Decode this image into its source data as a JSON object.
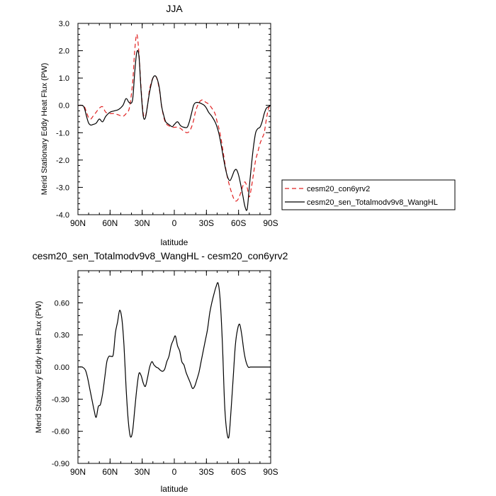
{
  "chart_data": [
    {
      "type": "line",
      "title": "JJA",
      "xlabel": "latitude",
      "ylabel": "Merid Stationary Eddy Heat Flux (PW)",
      "xlim": [
        90,
        -90
      ],
      "ylim": [
        -4.0,
        3.0
      ],
      "x_ticks": [
        {
          "value": 90,
          "label": "90N"
        },
        {
          "value": 60,
          "label": "60N"
        },
        {
          "value": 30,
          "label": "30N"
        },
        {
          "value": 0,
          "label": "0"
        },
        {
          "value": -30,
          "label": "30S"
        },
        {
          "value": -60,
          "label": "60S"
        },
        {
          "value": -90,
          "label": "90S"
        }
      ],
      "y_ticks": [
        {
          "value": 3.0,
          "label": "3.0"
        },
        {
          "value": 2.0,
          "label": "2.0"
        },
        {
          "value": 1.0,
          "label": "1.0"
        },
        {
          "value": 0.0,
          "label": "0.0"
        },
        {
          "value": -1.0,
          "label": "-1.0"
        },
        {
          "value": -2.0,
          "label": "-2.0"
        },
        {
          "value": -3.0,
          "label": "-3.0"
        },
        {
          "value": -4.0,
          "label": "-4.0"
        }
      ],
      "legend_position": "right",
      "series": [
        {
          "name": "cesm20_con6yrv2",
          "color": "#e02020",
          "dash": "dashed",
          "x": [
            90,
            86,
            84,
            82,
            80,
            78,
            76,
            73,
            70,
            67,
            64,
            60,
            56,
            52,
            48,
            45,
            42,
            39,
            37,
            35,
            33,
            31,
            29,
            27,
            25,
            23,
            20,
            17,
            14,
            12,
            10,
            8,
            5,
            2,
            0,
            -3,
            -6,
            -9,
            -12,
            -14,
            -16,
            -18,
            -20,
            -23,
            -26,
            -28,
            -30,
            -32,
            -35,
            -38,
            -40,
            -42,
            -44,
            -46,
            -48,
            -50,
            -52,
            -54,
            -56,
            -58,
            -60,
            -62,
            -64,
            -66,
            -68,
            -70,
            -72,
            -74,
            -76,
            -78,
            -80,
            -82,
            -84,
            -86,
            -88,
            -90
          ],
          "y": [
            0,
            0,
            -0.05,
            -0.25,
            -0.45,
            -0.5,
            -0.4,
            -0.25,
            -0.1,
            -0.05,
            -0.25,
            -0.3,
            -0.3,
            -0.35,
            -0.4,
            -0.3,
            -0.1,
            0.8,
            2.0,
            2.6,
            1.9,
            0.6,
            -0.3,
            -0.4,
            0,
            0.6,
            1.0,
            1.05,
            0.6,
            0,
            -0.4,
            -0.65,
            -0.75,
            -0.8,
            -0.8,
            -0.8,
            -0.85,
            -0.95,
            -1.0,
            -0.95,
            -0.8,
            -0.55,
            -0.2,
            0.1,
            0.2,
            0.15,
            0.1,
            0.05,
            -0.1,
            -0.3,
            -0.6,
            -0.9,
            -1.3,
            -1.8,
            -2.3,
            -2.7,
            -3.0,
            -3.25,
            -3.45,
            -3.5,
            -3.4,
            -3.2,
            -2.95,
            -2.8,
            -3.0,
            -3.35,
            -3.0,
            -2.5,
            -2.0,
            -1.7,
            -1.4,
            -1.2,
            -1.0,
            -0.5,
            -0.1,
            0
          ]
        },
        {
          "name": "cesm20_sen_Totalmodv9v8_WangHL",
          "color": "#000000",
          "dash": "solid",
          "x": [
            90,
            86,
            84,
            82,
            80,
            78,
            76,
            73,
            70,
            67,
            64,
            60,
            56,
            52,
            48,
            45,
            42,
            39,
            37,
            35,
            33,
            31,
            29,
            27,
            25,
            23,
            20,
            17,
            14,
            12,
            10,
            8,
            5,
            2,
            0,
            -3,
            -6,
            -9,
            -12,
            -14,
            -16,
            -18,
            -20,
            -23,
            -26,
            -28,
            -30,
            -32,
            -35,
            -38,
            -40,
            -42,
            -44,
            -46,
            -48,
            -50,
            -52,
            -54,
            -56,
            -58,
            -60,
            -62,
            -64,
            -66,
            -68,
            -70,
            -72,
            -74,
            -76,
            -78,
            -80,
            -82,
            -84,
            -86,
            -88,
            -90
          ],
          "y": [
            0,
            0,
            -0.1,
            -0.4,
            -0.65,
            -0.72,
            -0.7,
            -0.65,
            -0.5,
            -0.6,
            -0.4,
            -0.25,
            -0.2,
            -0.15,
            0,
            0.25,
            0.1,
            0.2,
            1.2,
            1.95,
            1.8,
            0.5,
            -0.4,
            -0.45,
            0,
            0.5,
            1.0,
            1.05,
            0.65,
            0,
            -0.35,
            -0.6,
            -0.7,
            -0.78,
            -0.7,
            -0.6,
            -0.75,
            -0.8,
            -0.8,
            -0.6,
            -0.3,
            0,
            0.1,
            0.1,
            0.05,
            0,
            -0.1,
            -0.25,
            -0.4,
            -0.6,
            -0.8,
            -1.1,
            -1.5,
            -1.95,
            -2.35,
            -2.65,
            -2.75,
            -2.6,
            -2.4,
            -2.35,
            -2.55,
            -2.9,
            -3.3,
            -3.7,
            -3.8,
            -3.0,
            -2.2,
            -1.5,
            -1.0,
            -0.85,
            -0.8,
            -0.6,
            -0.3,
            -0.1,
            -0.05,
            0
          ]
        }
      ]
    },
    {
      "type": "line",
      "title": "cesm20_sen_Totalmodv9v8_WangHL - cesm20_con6yrv2",
      "xlabel": "latitude",
      "ylabel": "Merid Stationary Eddy Heat Flux (PW)",
      "xlim": [
        90,
        -90
      ],
      "ylim": [
        -0.9,
        0.9
      ],
      "x_ticks": [
        {
          "value": 90,
          "label": "90N"
        },
        {
          "value": 60,
          "label": "60N"
        },
        {
          "value": 30,
          "label": "30N"
        },
        {
          "value": 0,
          "label": "0"
        },
        {
          "value": -30,
          "label": "30S"
        },
        {
          "value": -60,
          "label": "60S"
        },
        {
          "value": -90,
          "label": "90S"
        }
      ],
      "y_ticks": [
        {
          "value": 0.6,
          "label": "0.60"
        },
        {
          "value": 0.3,
          "label": "0.30"
        },
        {
          "value": 0.0,
          "label": "0.00"
        },
        {
          "value": -0.3,
          "label": "-0.30"
        },
        {
          "value": -0.6,
          "label": "-0.60"
        },
        {
          "value": -0.9,
          "label": "-0.90"
        }
      ],
      "series": [
        {
          "color": "#000000",
          "dash": "solid",
          "x": [
            90,
            86,
            83,
            81,
            79,
            77,
            75,
            73,
            71,
            69,
            67,
            65,
            63,
            61,
            59,
            57,
            55,
            53,
            51,
            49,
            47,
            45,
            43,
            41,
            39,
            37,
            35,
            33,
            31,
            29,
            27,
            25,
            23,
            21,
            19,
            17,
            15,
            13,
            11,
            9,
            7,
            5,
            3,
            1,
            -1,
            -3,
            -5,
            -7,
            -9,
            -11,
            -13,
            -15,
            -17,
            -19,
            -21,
            -23,
            -25,
            -27,
            -29,
            -31,
            -33,
            -35,
            -37,
            -39,
            -41,
            -43,
            -45,
            -47,
            -49,
            -51,
            -53,
            -55,
            -57,
            -59,
            -61,
            -63,
            -65,
            -67,
            -69,
            -71,
            -73,
            -75,
            -77,
            -79,
            -81,
            -83,
            -85,
            -87,
            -90
          ],
          "y": [
            0,
            0,
            -0.03,
            -0.1,
            -0.2,
            -0.3,
            -0.4,
            -0.47,
            -0.37,
            -0.35,
            -0.25,
            -0.1,
            0.05,
            0.1,
            0.1,
            0.12,
            0.32,
            0.42,
            0.53,
            0.45,
            0.2,
            -0.2,
            -0.5,
            -0.65,
            -0.6,
            -0.4,
            -0.2,
            -0.06,
            -0.08,
            -0.15,
            -0.18,
            -0.1,
            0,
            0.05,
            0.02,
            0,
            -0.01,
            -0.03,
            -0.04,
            -0.02,
            0.05,
            0.1,
            0.2,
            0.25,
            0.29,
            0.2,
            0.15,
            0.05,
            0.02,
            -0.05,
            -0.1,
            -0.15,
            -0.2,
            -0.18,
            -0.12,
            -0.05,
            0.05,
            0.15,
            0.25,
            0.35,
            0.5,
            0.6,
            0.68,
            0.75,
            0.78,
            0.6,
            0.2,
            -0.35,
            -0.6,
            -0.65,
            -0.4,
            -0.1,
            0.2,
            0.35,
            0.4,
            0.3,
            0.15,
            0.05,
            0,
            0,
            0,
            0,
            0,
            0,
            0,
            0,
            0,
            0,
            0
          ]
        }
      ]
    }
  ]
}
